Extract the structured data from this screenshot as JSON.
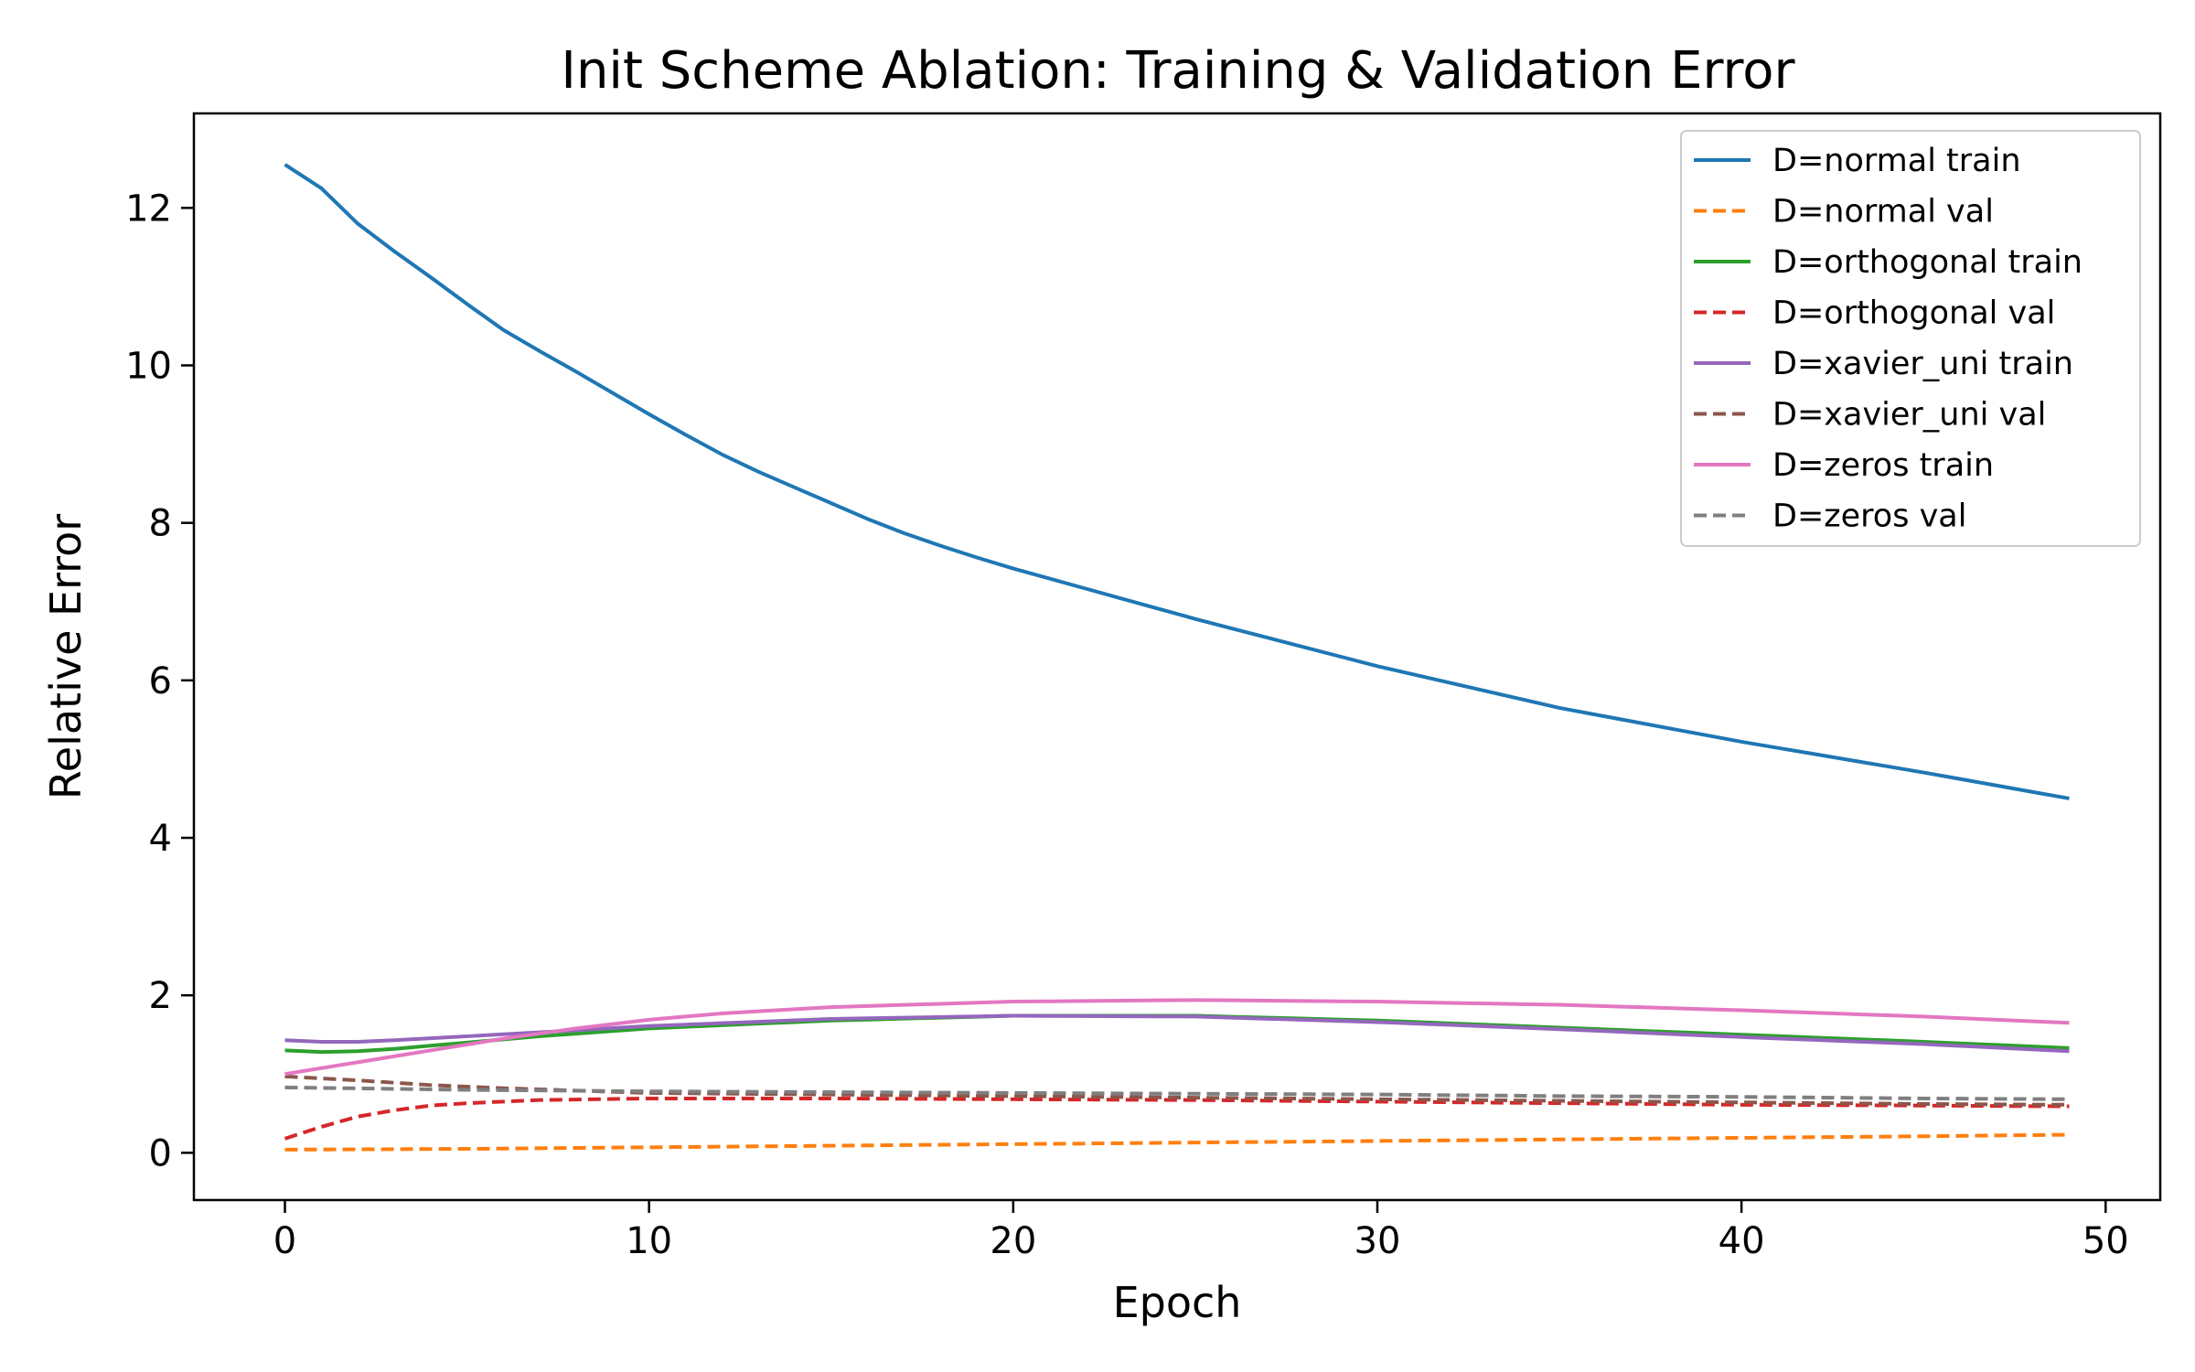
{
  "chart_data": {
    "type": "line",
    "title": "Init Scheme Ablation: Training & Validation Error",
    "xlabel": "Epoch",
    "ylabel": "Relative Error",
    "xlim": [
      -2.5,
      51.5
    ],
    "ylim": [
      -0.6,
      13.2
    ],
    "xticks": [
      0,
      10,
      20,
      30,
      40,
      50
    ],
    "yticks": [
      0,
      2,
      4,
      6,
      8,
      10,
      12
    ],
    "legend_position": "top-right",
    "grid": false,
    "x_start": 0,
    "x_end": 49,
    "series": [
      {
        "name": "D=normal train",
        "color": "#1f77b4",
        "dash": "solid",
        "points": [
          [
            0,
            12.55
          ],
          [
            1,
            12.25
          ],
          [
            2,
            11.8
          ],
          [
            3,
            11.45
          ],
          [
            4,
            11.12
          ],
          [
            5,
            10.78
          ],
          [
            6,
            10.45
          ],
          [
            7,
            10.18
          ],
          [
            8,
            9.92
          ],
          [
            9,
            9.65
          ],
          [
            10,
            9.38
          ],
          [
            11,
            9.12
          ],
          [
            12,
            8.87
          ],
          [
            13,
            8.65
          ],
          [
            14,
            8.45
          ],
          [
            15,
            8.25
          ],
          [
            16,
            8.05
          ],
          [
            17,
            7.87
          ],
          [
            18,
            7.71
          ],
          [
            19,
            7.56
          ],
          [
            20,
            7.42
          ],
          [
            25,
            6.78
          ],
          [
            30,
            6.18
          ],
          [
            35,
            5.65
          ],
          [
            40,
            5.22
          ],
          [
            45,
            4.83
          ],
          [
            49,
            4.5
          ]
        ]
      },
      {
        "name": "D=normal val",
        "color": "#ff7f0e",
        "dash": "dashed",
        "points": [
          [
            0,
            0.04
          ],
          [
            5,
            0.05
          ],
          [
            10,
            0.07
          ],
          [
            15,
            0.09
          ],
          [
            20,
            0.11
          ],
          [
            25,
            0.13
          ],
          [
            30,
            0.15
          ],
          [
            35,
            0.17
          ],
          [
            40,
            0.19
          ],
          [
            45,
            0.21
          ],
          [
            49,
            0.23
          ]
        ]
      },
      {
        "name": "D=orthogonal train",
        "color": "#2ca02c",
        "dash": "solid",
        "points": [
          [
            0,
            1.3
          ],
          [
            1,
            1.28
          ],
          [
            2,
            1.29
          ],
          [
            3,
            1.32
          ],
          [
            5,
            1.4
          ],
          [
            7,
            1.48
          ],
          [
            10,
            1.58
          ],
          [
            15,
            1.68
          ],
          [
            20,
            1.74
          ],
          [
            25,
            1.74
          ],
          [
            30,
            1.68
          ],
          [
            35,
            1.59
          ],
          [
            40,
            1.5
          ],
          [
            45,
            1.41
          ],
          [
            49,
            1.33
          ]
        ]
      },
      {
        "name": "D=orthogonal val",
        "color": "#d62728",
        "dash": "dashed",
        "points": [
          [
            0,
            0.18
          ],
          [
            1,
            0.33
          ],
          [
            2,
            0.46
          ],
          [
            3,
            0.54
          ],
          [
            4,
            0.6
          ],
          [
            5,
            0.63
          ],
          [
            7,
            0.67
          ],
          [
            10,
            0.69
          ],
          [
            15,
            0.69
          ],
          [
            20,
            0.68
          ],
          [
            25,
            0.67
          ],
          [
            30,
            0.65
          ],
          [
            35,
            0.63
          ],
          [
            40,
            0.61
          ],
          [
            45,
            0.6
          ],
          [
            49,
            0.59
          ]
        ]
      },
      {
        "name": "D=xavier_uni train",
        "color": "#9467bd",
        "dash": "solid",
        "points": [
          [
            0,
            1.43
          ],
          [
            1,
            1.41
          ],
          [
            2,
            1.41
          ],
          [
            3,
            1.43
          ],
          [
            5,
            1.48
          ],
          [
            7,
            1.53
          ],
          [
            10,
            1.61
          ],
          [
            15,
            1.7
          ],
          [
            20,
            1.74
          ],
          [
            25,
            1.73
          ],
          [
            30,
            1.66
          ],
          [
            35,
            1.57
          ],
          [
            40,
            1.47
          ],
          [
            45,
            1.38
          ],
          [
            49,
            1.29
          ]
        ]
      },
      {
        "name": "D=xavier_uni val",
        "color": "#8c564b",
        "dash": "dashed",
        "points": [
          [
            0,
            0.97
          ],
          [
            2,
            0.92
          ],
          [
            4,
            0.86
          ],
          [
            6,
            0.82
          ],
          [
            10,
            0.76
          ],
          [
            15,
            0.74
          ],
          [
            20,
            0.72
          ],
          [
            25,
            0.7
          ],
          [
            30,
            0.68
          ],
          [
            35,
            0.66
          ],
          [
            40,
            0.64
          ],
          [
            45,
            0.62
          ],
          [
            49,
            0.61
          ]
        ]
      },
      {
        "name": "D=zeros train",
        "color": "#e377c2",
        "dash": "solid",
        "points": [
          [
            0,
            1.0
          ],
          [
            2,
            1.15
          ],
          [
            4,
            1.3
          ],
          [
            6,
            1.45
          ],
          [
            8,
            1.58
          ],
          [
            10,
            1.69
          ],
          [
            12,
            1.77
          ],
          [
            15,
            1.85
          ],
          [
            20,
            1.92
          ],
          [
            25,
            1.94
          ],
          [
            30,
            1.92
          ],
          [
            35,
            1.88
          ],
          [
            40,
            1.81
          ],
          [
            45,
            1.73
          ],
          [
            49,
            1.65
          ]
        ]
      },
      {
        "name": "D=zeros val",
        "color": "#7f7f7f",
        "dash": "dashed",
        "points": [
          [
            0,
            0.83
          ],
          [
            5,
            0.8
          ],
          [
            10,
            0.78
          ],
          [
            15,
            0.77
          ],
          [
            20,
            0.76
          ],
          [
            25,
            0.75
          ],
          [
            30,
            0.74
          ],
          [
            35,
            0.72
          ],
          [
            40,
            0.71
          ],
          [
            45,
            0.69
          ],
          [
            49,
            0.68
          ]
        ]
      }
    ]
  }
}
